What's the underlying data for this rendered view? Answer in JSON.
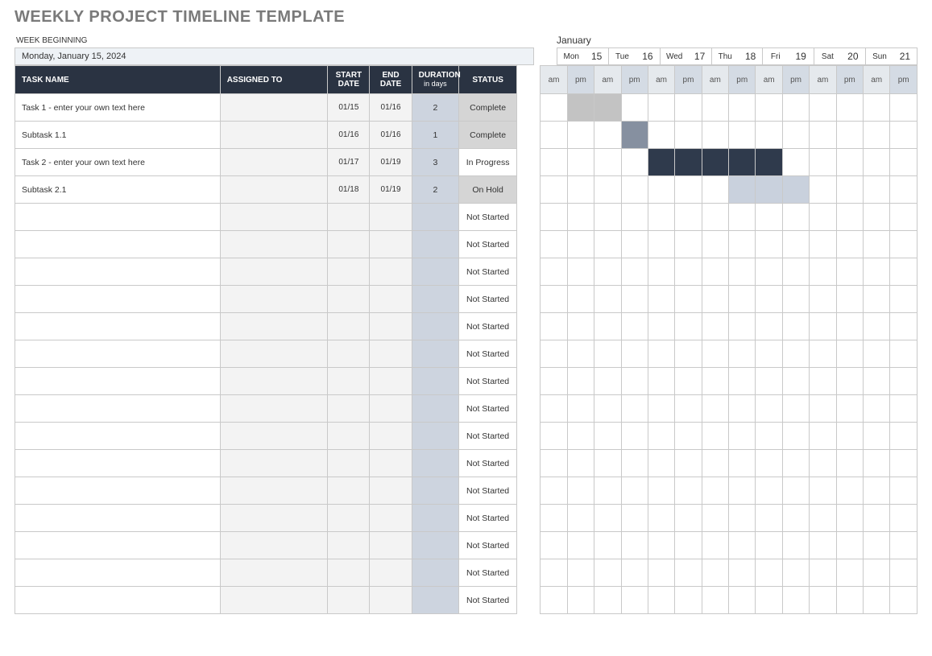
{
  "title": "WEEKLY PROJECT TIMELINE TEMPLATE",
  "week_beginning_label": "WEEK BEGINNING",
  "week_beginning_value": "Monday, January 15, 2024",
  "month_label": "January",
  "days": [
    {
      "name": "Mon",
      "num": "15"
    },
    {
      "name": "Tue",
      "num": "16"
    },
    {
      "name": "Wed",
      "num": "17"
    },
    {
      "name": "Thu",
      "num": "18"
    },
    {
      "name": "Fri",
      "num": "19"
    },
    {
      "name": "Sat",
      "num": "20"
    },
    {
      "name": "Sun",
      "num": "21"
    }
  ],
  "ampm_labels": {
    "am": "am",
    "pm": "pm"
  },
  "columns": {
    "task": "TASK NAME",
    "assigned": "ASSIGNED TO",
    "start": "START DATE",
    "end": "END DATE",
    "duration": "DURATION",
    "duration_sub": "in days",
    "status": "STATUS"
  },
  "colors": {
    "header_bg": "#2a3342",
    "header_text": "#ffffff",
    "ampm_am_bg": "#e5e9ed",
    "ampm_pm_bg": "#d4dbe4",
    "assigned_bg": "#f3f3f3",
    "date_bg": "#f3f3f3",
    "duration_bg": "#cdd4df",
    "border": "#c9c9c9",
    "week_box_bg": "#eef2f6",
    "status_complete_bg": "#d5d5d5",
    "status_onhold_bg": "#d5d5d5",
    "status_default_bg": "#ffffff",
    "bar_complete": "#c3c3c3",
    "bar_subtask_complete": "#8690a0",
    "bar_inprogress": "#2f3a4c",
    "bar_onhold": "#c9d1dd"
  },
  "status_bg_map": {
    "Complete": "#d5d5d5",
    "In Progress": "#ffffff",
    "On Hold": "#d5d5d5",
    "Not Started": "#ffffff"
  },
  "rows": [
    {
      "task": "Task 1 - enter your own text here",
      "assigned": "",
      "start": "01/15",
      "end": "01/16",
      "duration": "2",
      "status": "Complete",
      "bar_start": 1,
      "bar_end": 2,
      "bar_color": "#c3c3c3"
    },
    {
      "task": "Subtask 1.1",
      "assigned": "",
      "start": "01/16",
      "end": "01/16",
      "duration": "1",
      "status": "Complete",
      "bar_start": 3,
      "bar_end": 3,
      "bar_color": "#8690a0"
    },
    {
      "task": "Task 2 - enter your own text here",
      "assigned": "",
      "start": "01/17",
      "end": "01/19",
      "duration": "3",
      "status": "In Progress",
      "bar_start": 4,
      "bar_end": 8,
      "bar_color": "#2f3a4c"
    },
    {
      "task": "Subtask 2.1",
      "assigned": "",
      "start": "01/18",
      "end": "01/19",
      "duration": "2",
      "status": "On Hold",
      "bar_start": 7,
      "bar_end": 9,
      "bar_color": "#c9d1dd"
    },
    {
      "task": "",
      "assigned": "",
      "start": "",
      "end": "",
      "duration": "",
      "status": "Not Started"
    },
    {
      "task": "",
      "assigned": "",
      "start": "",
      "end": "",
      "duration": "",
      "status": "Not Started"
    },
    {
      "task": "",
      "assigned": "",
      "start": "",
      "end": "",
      "duration": "",
      "status": "Not Started"
    },
    {
      "task": "",
      "assigned": "",
      "start": "",
      "end": "",
      "duration": "",
      "status": "Not Started"
    },
    {
      "task": "",
      "assigned": "",
      "start": "",
      "end": "",
      "duration": "",
      "status": "Not Started"
    },
    {
      "task": "",
      "assigned": "",
      "start": "",
      "end": "",
      "duration": "",
      "status": "Not Started"
    },
    {
      "task": "",
      "assigned": "",
      "start": "",
      "end": "",
      "duration": "",
      "status": "Not Started"
    },
    {
      "task": "",
      "assigned": "",
      "start": "",
      "end": "",
      "duration": "",
      "status": "Not Started"
    },
    {
      "task": "",
      "assigned": "",
      "start": "",
      "end": "",
      "duration": "",
      "status": "Not Started"
    },
    {
      "task": "",
      "assigned": "",
      "start": "",
      "end": "",
      "duration": "",
      "status": "Not Started"
    },
    {
      "task": "",
      "assigned": "",
      "start": "",
      "end": "",
      "duration": "",
      "status": "Not Started"
    },
    {
      "task": "",
      "assigned": "",
      "start": "",
      "end": "",
      "duration": "",
      "status": "Not Started"
    },
    {
      "task": "",
      "assigned": "",
      "start": "",
      "end": "",
      "duration": "",
      "status": "Not Started"
    },
    {
      "task": "",
      "assigned": "",
      "start": "",
      "end": "",
      "duration": "",
      "status": "Not Started"
    },
    {
      "task": "",
      "assigned": "",
      "start": "",
      "end": "",
      "duration": "",
      "status": "Not Started"
    }
  ]
}
